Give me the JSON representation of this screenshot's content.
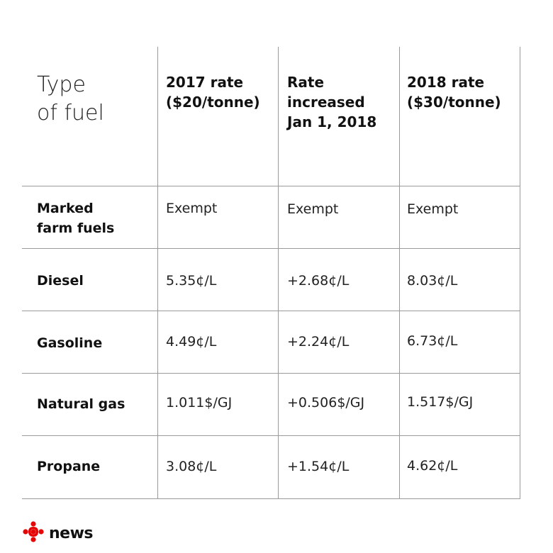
{
  "chart_data": {
    "type": "table",
    "columns": [
      "Type\nof fuel",
      "2017 rate\n($20/tonne)",
      "Rate\nincreased\nJan 1, 2018",
      "2018 rate\n($30/tonne)"
    ],
    "rows": [
      {
        "label": "Marked\nfarm fuels",
        "cells": [
          "Exempt",
          "Exempt",
          "Exempt"
        ]
      },
      {
        "label": "Diesel",
        "cells": [
          "5.35¢/L",
          "+2.68¢/L",
          "8.03¢/L"
        ]
      },
      {
        "label": "Gasoline",
        "cells": [
          "4.49¢/L",
          "+2.24¢/L",
          "6.73¢/L"
        ]
      },
      {
        "label": "Natural gas",
        "cells": [
          "1.011$/GJ",
          "+0.506$/GJ",
          "1.517$/GJ"
        ]
      },
      {
        "label": "Propane",
        "cells": [
          "3.08¢/L",
          "+1.54¢/L",
          "4.62¢/L"
        ]
      }
    ]
  },
  "footer": {
    "logo_text": "news",
    "logo_icon": "cbc-gem-icon",
    "logo_color": "#e60505"
  }
}
